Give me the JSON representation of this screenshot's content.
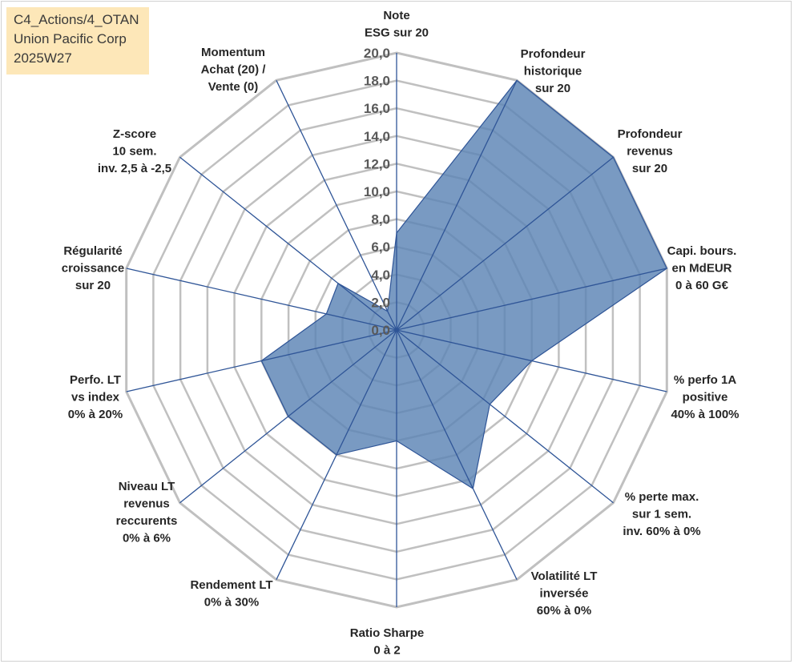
{
  "tag_box": {
    "line1": "C4_Actions/4_OTAN",
    "line2": "Union Pacific Corp",
    "line3": "2025W27"
  },
  "chart_data": {
    "type": "radar",
    "title": "",
    "rlim": [
      0,
      20
    ],
    "ticks": [
      "0,0",
      "2,0",
      "4,0",
      "6,0",
      "8,0",
      "10,0",
      "12,0",
      "14,0",
      "16,0",
      "18,0",
      "20,0"
    ],
    "grid": true,
    "colors": {
      "fill": "#5b84b5",
      "line": "#2f5597",
      "grid": "#c0c0c0",
      "spoke": "#2f5597"
    },
    "axes": [
      {
        "lines": [
          "Note",
          "ESG sur 20"
        ],
        "value": 7.0
      },
      {
        "lines": [
          "Profondeur",
          "historique",
          "sur 20"
        ],
        "value": 20.0
      },
      {
        "lines": [
          "Profondeur",
          "revenus",
          "sur 20"
        ],
        "value": 20.0
      },
      {
        "lines": [
          "Capi. bours.",
          "en MdEUR",
          "0 à 60 G€"
        ],
        "value": 20.0
      },
      {
        "lines": [
          "% perfo 1A",
          "positive",
          "40% à 100%"
        ],
        "value": 10.0
      },
      {
        "lines": [
          "% perte max.",
          "sur 1 sem.",
          "inv. 60% à 0%"
        ],
        "value": 8.6
      },
      {
        "lines": [
          "Volatilité LT",
          "inversée",
          "60% à 0%"
        ],
        "value": 12.7
      },
      {
        "lines": [
          "Ratio Sharpe",
          "0 à 2"
        ],
        "value": 8.0
      },
      {
        "lines": [
          "Rendement LT",
          "0% à 30%"
        ],
        "value": 10.0
      },
      {
        "lines": [
          "Niveau LT",
          "revenus",
          "reccurents",
          "0% à 6%"
        ],
        "value": 10.0
      },
      {
        "lines": [
          "Perfo. LT",
          "vs index",
          "0% à 20%"
        ],
        "value": 10.0
      },
      {
        "lines": [
          "Régularité",
          "croissance",
          "sur 20"
        ],
        "value": 5.2
      },
      {
        "lines": [
          "Z-score",
          "10 sem.",
          "inv. 2,5 à -2,5"
        ],
        "value": 5.4
      },
      {
        "lines": [
          "Momentum",
          "Achat (20) /",
          "Vente (0)"
        ],
        "value": 1.5
      }
    ]
  }
}
